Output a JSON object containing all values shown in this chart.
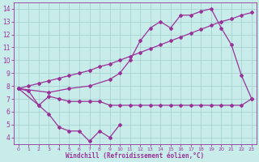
{
  "background_color": "#c8ecea",
  "grid_color": "#a8d4d0",
  "line_color": "#993399",
  "xlabel": "Windchill (Refroidissement éolien,°C)",
  "xlim": [
    -0.5,
    23.5
  ],
  "ylim": [
    3.5,
    14.5
  ],
  "yticks": [
    4,
    5,
    6,
    7,
    8,
    9,
    10,
    11,
    12,
    13,
    14
  ],
  "xticks": [
    0,
    1,
    2,
    3,
    4,
    5,
    6,
    7,
    8,
    9,
    10,
    11,
    12,
    13,
    14,
    15,
    16,
    17,
    18,
    19,
    20,
    21,
    22,
    23
  ],
  "series": [
    {
      "x": [
        0,
        1,
        2,
        3,
        4,
        5,
        6,
        7,
        8,
        9,
        10,
        11,
        12,
        13,
        14,
        15,
        16,
        17,
        18,
        19,
        20,
        21,
        22,
        23
      ],
      "y": [
        7.8,
        8.0,
        8.2,
        8.4,
        8.6,
        8.8,
        9.0,
        9.2,
        9.5,
        9.7,
        10.0,
        10.3,
        10.6,
        10.9,
        11.2,
        11.5,
        11.8,
        12.1,
        12.4,
        12.7,
        13.0,
        13.2,
        13.5,
        13.7
      ]
    },
    {
      "x": [
        0,
        3,
        5,
        7,
        9,
        10,
        11,
        12,
        13,
        14,
        15,
        16,
        17,
        18,
        19,
        20,
        21,
        22,
        23
      ],
      "y": [
        7.8,
        7.5,
        7.8,
        8.0,
        8.5,
        9.0,
        10.0,
        11.5,
        12.5,
        13.0,
        12.5,
        13.5,
        13.5,
        13.8,
        14.0,
        12.5,
        11.2,
        8.8,
        7.0
      ]
    },
    {
      "x": [
        0,
        1,
        2,
        3,
        4,
        5,
        6,
        7,
        8,
        9,
        10,
        11,
        12,
        13,
        14,
        15,
        16,
        17,
        18,
        19,
        20,
        21,
        22,
        23
      ],
      "y": [
        7.8,
        7.6,
        6.5,
        7.2,
        7.0,
        6.8,
        6.8,
        6.8,
        6.8,
        6.5,
        6.5,
        6.5,
        6.5,
        6.5,
        6.5,
        6.5,
        6.5,
        6.5,
        6.5,
        6.5,
        6.5,
        6.5,
        6.5,
        7.0
      ]
    },
    {
      "x": [
        0,
        2,
        3,
        4,
        5,
        6,
        7,
        8,
        9,
        10
      ],
      "y": [
        7.8,
        6.5,
        5.8,
        4.8,
        4.5,
        4.5,
        3.7,
        4.5,
        4.0,
        5.0
      ]
    }
  ]
}
